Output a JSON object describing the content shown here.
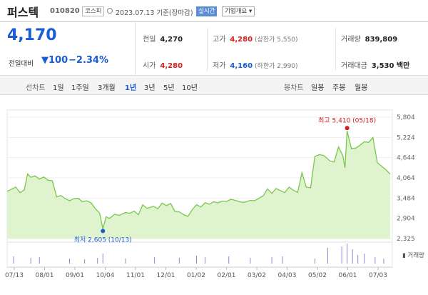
{
  "header": {
    "name": "퍼스텍",
    "code": "010820",
    "market": "코스피",
    "date": "2023.07.13 기준(장마감)",
    "realtime": "실시간",
    "company_info": "기업개요 ▾"
  },
  "quote": {
    "price": "4,170",
    "change_label": "전일대비",
    "change": "▼100",
    "change_pct": "−2.34%",
    "prev_label": "전일",
    "prev": "4,270",
    "open_label": "시가",
    "open": "4,280",
    "high_label": "고가",
    "high": "4,280",
    "upper_limit": "(상한가 5,550)",
    "low_label": "저가",
    "low": "4,160",
    "lower_limit": "(하한가 2,990)",
    "volume_label": "거래량",
    "volume": "839,809",
    "amount_label": "거래대금",
    "amount": "3,530 백만"
  },
  "tabs": {
    "line_label": "선차트",
    "periods": [
      "1일",
      "1주일",
      "3개월",
      "1년",
      "3년",
      "5년",
      "10년"
    ],
    "selected": "1년",
    "candle_label": "봉차트",
    "candle_periods": [
      "일봉",
      "주봉",
      "월봉"
    ]
  },
  "chart_data": {
    "type": "area",
    "y_ticks": [
      "5,804",
      "5,224",
      "4,644",
      "4,064",
      "3,484",
      "2,904",
      "2,325"
    ],
    "ylim": [
      2325,
      5804
    ],
    "x_ticks": [
      "07/13",
      "08/01",
      "09/01",
      "10/04",
      "11/01",
      "12/01",
      "01/02",
      "02/01",
      "03/02",
      "04/03",
      "05/02",
      "06/01",
      "07/03"
    ],
    "max_annotation": "최고 5,410 (05/18)",
    "min_annotation": "최저 2,605 (10/13)",
    "volume_label": "▮ 거래량",
    "colors": {
      "line": "#79c84a",
      "fill": "#dff3cf",
      "max": "#d61c1c",
      "min": "#1a5bd6"
    },
    "x_day": [
      0,
      4,
      8,
      12,
      16,
      19,
      22,
      26,
      30,
      34,
      38,
      42,
      46,
      50,
      54,
      58,
      62,
      66,
      70,
      74,
      78,
      82,
      86,
      89,
      92,
      95,
      100,
      104,
      110,
      114,
      118,
      122,
      126,
      130,
      136,
      140,
      144,
      148,
      152,
      156,
      160,
      164,
      168,
      172,
      176,
      180,
      184,
      188,
      192,
      196,
      200,
      204,
      208,
      212,
      216,
      220,
      226,
      230,
      234,
      238,
      242,
      246,
      250,
      254,
      258,
      262,
      266,
      270,
      274,
      278,
      282,
      286,
      290,
      294,
      296,
      300,
      304,
      308,
      312,
      314,
      316,
      320,
      324,
      328,
      332,
      336,
      340,
      344,
      348,
      352,
      356
    ],
    "price": [
      3680,
      3740,
      3800,
      3640,
      3720,
      4180,
      4080,
      4120,
      4030,
      4090,
      4000,
      3980,
      3520,
      3560,
      3470,
      3410,
      3470,
      3480,
      3380,
      3410,
      3350,
      3180,
      3050,
      2605,
      2950,
      2900,
      3020,
      2990,
      3070,
      3050,
      3110,
      3010,
      3290,
      3190,
      3250,
      3180,
      3340,
      3270,
      3330,
      3100,
      3090,
      3010,
      2960,
      3150,
      3300,
      3230,
      3350,
      3310,
      3380,
      3350,
      3400,
      3390,
      3450,
      3420,
      3380,
      3360,
      3420,
      3410,
      3480,
      3550,
      3750,
      3620,
      3760,
      3700,
      3640,
      3800,
      3710,
      3650,
      4210,
      3800,
      3780,
      4680,
      4730,
      4710,
      4660,
      4550,
      4520,
      4950,
      4700,
      4350,
      5410,
      4900,
      4920,
      5000,
      5100,
      5080,
      5220,
      4500,
      4400,
      4300,
      4170
    ],
    "volume_spikes": [
      [
        6,
        10
      ],
      [
        22,
        8
      ],
      [
        30,
        9
      ],
      [
        58,
        7
      ],
      [
        72,
        6
      ],
      [
        84,
        8
      ],
      [
        89,
        14
      ],
      [
        110,
        7
      ],
      [
        137,
        9
      ],
      [
        160,
        8
      ],
      [
        176,
        11
      ],
      [
        184,
        9
      ],
      [
        206,
        10
      ],
      [
        226,
        8
      ],
      [
        246,
        9
      ],
      [
        256,
        10
      ],
      [
        286,
        7
      ],
      [
        298,
        22
      ],
      [
        311,
        24
      ],
      [
        316,
        28
      ],
      [
        321,
        20
      ],
      [
        326,
        12
      ],
      [
        332,
        14
      ],
      [
        342,
        9
      ],
      [
        350,
        7
      ]
    ]
  }
}
